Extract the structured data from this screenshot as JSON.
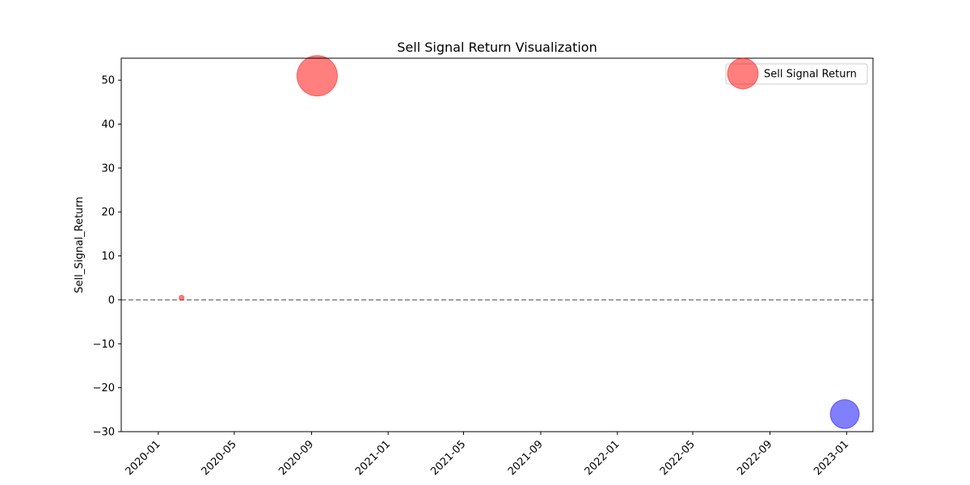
{
  "chart_data": {
    "type": "scatter",
    "title": "Sell Signal Return Visualization",
    "xlabel": "",
    "ylabel": "Sell_Signal_Return",
    "x_axis": "date",
    "xlim": [
      "2019-11-03",
      "2023-02-12"
    ],
    "ylim": [
      -30,
      55
    ],
    "x_ticks": [
      "2020-01",
      "2020-05",
      "2020-09",
      "2021-01",
      "2021-05",
      "2021-09",
      "2022-01",
      "2022-05",
      "2022-09",
      "2023-01"
    ],
    "y_ticks": [
      -30,
      -20,
      -10,
      0,
      10,
      20,
      30,
      40,
      50
    ],
    "y_tick_labels": [
      "−30",
      "−20",
      "−10",
      "0",
      "10",
      "20",
      "30",
      "40",
      "50"
    ],
    "reference_line": {
      "y": 0,
      "style": "dashed",
      "color": "#808080"
    },
    "grid": false,
    "legend": {
      "position": "top-right",
      "entries": [
        "Sell Signal Return"
      ]
    },
    "points": [
      {
        "x": "2020-02-07",
        "y": 0.5,
        "magnitude": 0.5,
        "color": "#ff0000"
      },
      {
        "x": "2020-09-10",
        "y": 51,
        "magnitude": 51,
        "color": "#ff0000"
      },
      {
        "x": "2022-12-29",
        "y": -26,
        "magnitude": 26,
        "color": "#0000ff"
      }
    ],
    "marker_alpha": 0.5
  }
}
